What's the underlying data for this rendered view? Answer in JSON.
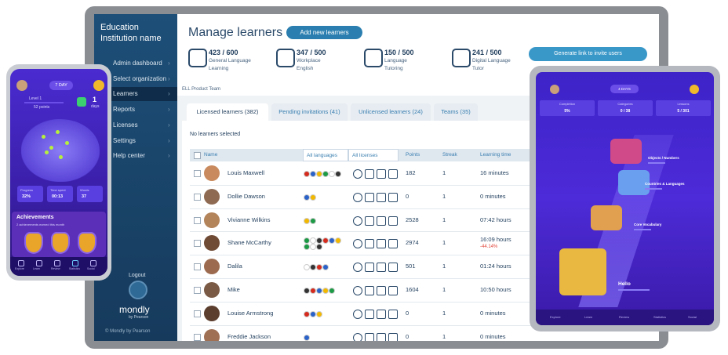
{
  "sidebar": {
    "org": "Education Institution name",
    "menu": [
      "Admin dashboard",
      "Select organization",
      "Learners",
      "Reports",
      "Licenses",
      "Settings",
      "Help center"
    ],
    "logout": "Logout",
    "brand": "mondly",
    "brand_sub": "by Pearson",
    "copyright": "© Mondly by Pearson"
  },
  "header": {
    "title": "Manage learners",
    "add_button": "Add new learners",
    "invite_button": "Generate link to invite users",
    "team": "ELL Product Team"
  },
  "stats": [
    {
      "count": "423 / 600",
      "label1": "General Language",
      "label2": "Learning"
    },
    {
      "count": "347 / 500",
      "label1": "Workplace",
      "label2": "English"
    },
    {
      "count": "150 / 500",
      "label1": "Language",
      "label2": "Tutoring"
    },
    {
      "count": "241 / 500",
      "label1": "Digital Language",
      "label2": "Tutor"
    }
  ],
  "tabs": [
    "Licensed learners (382)",
    "Pending invitations (41)",
    "Unlicensed learners (24)",
    "Teams (35)"
  ],
  "selection": "No learners selected",
  "table": {
    "columns": [
      "Name",
      "All languages",
      "All licenses",
      "Points",
      "Streak",
      "Learning time"
    ],
    "rows": [
      {
        "name": "Louis Maxwell",
        "points": "182",
        "streak": "1",
        "time": "16 minutes"
      },
      {
        "name": "Dollie Dawson",
        "points": "0",
        "streak": "1",
        "time": "0 minutes"
      },
      {
        "name": "Vivianne Wilkins",
        "points": "2528",
        "streak": "1",
        "time": "07:42 hours"
      },
      {
        "name": "Shane McCarthy",
        "points": "2974",
        "streak": "1",
        "time": "16:09 hours",
        "change": "-44.14%"
      },
      {
        "name": "Dalila",
        "points": "501",
        "streak": "1",
        "time": "01:24 hours"
      },
      {
        "name": "Mike",
        "points": "1604",
        "streak": "1",
        "time": "10:50 hours"
      },
      {
        "name": "Louise Armstrong",
        "points": "0",
        "streak": "1",
        "time": "0 minutes"
      },
      {
        "name": "Freddie Jackson",
        "points": "0",
        "streak": "1",
        "time": "0 minutes"
      }
    ]
  },
  "phone": {
    "streak": "7 DAY",
    "level": "Level 1",
    "points": "52 points",
    "days_num": "1",
    "days": "days",
    "stats": [
      {
        "label": "Progress",
        "value": "32%"
      },
      {
        "label": "Time spent",
        "value": "00:13"
      },
      {
        "label": "Words",
        "value": "37"
      }
    ],
    "achievements": "Achievements",
    "achievements_sub": "2 achievements earned this month",
    "nav": [
      "Explore",
      "Learn",
      "Review",
      "Statistics",
      "Social"
    ]
  },
  "tablet": {
    "streak": "4 DAYS",
    "stats": [
      {
        "label": "Completion",
        "value": "5%"
      },
      {
        "label": "Categories",
        "value": "0 / 38"
      },
      {
        "label": "Lessons",
        "value": "5 / 301"
      }
    ],
    "topics": [
      "Objects / Numbers",
      "Countries & Languages",
      "Core Vocabulary",
      "Hello"
    ],
    "nav": [
      "Explore",
      "Learn",
      "Review",
      "Statistics",
      "Social"
    ]
  }
}
